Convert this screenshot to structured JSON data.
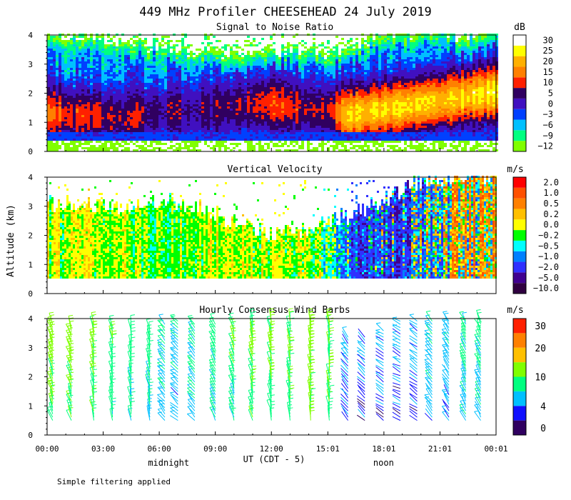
{
  "title": "449 MHz Profiler CHEESEHEAD 24 July 2019",
  "y_axis_label": "Altitude (km)",
  "x_axis": {
    "ticks": [
      "00:00",
      "03:00",
      "06:00",
      "09:00",
      "12:00",
      "15:01",
      "18:01",
      "21:01",
      "00:01"
    ],
    "tick_hours": [
      0,
      3,
      6,
      9,
      12,
      15.02,
      18.02,
      21.02,
      24.02
    ],
    "range": [
      0,
      24.02
    ],
    "label": "UT (CDT - 5)",
    "midnight_label": "midnight",
    "midnight_hour": 6.5,
    "noon_label": "noon",
    "noon_hour": 18.0
  },
  "footer_note": "Simple filtering applied",
  "colors": {
    "snr": [
      "#80ff00",
      "#00ff80",
      "#00c0ff",
      "#0040ff",
      "#4010c0",
      "#300060",
      "#ff2000",
      "#ff8000",
      "#ffb000",
      "#ffff00",
      "#ffffff"
    ],
    "velocity": [
      "#300040",
      "#400090",
      "#3030ff",
      "#0080ff",
      "#00ffff",
      "#00ff00",
      "#ffff00",
      "#ffc000",
      "#ff8000",
      "#ff5000",
      "#ff0000"
    ],
    "wind": [
      "#300060",
      "#1010ff",
      "#00c0ff",
      "#00ff80",
      "#80ff00",
      "#ffc000",
      "#ff8000",
      "#ff2000"
    ]
  },
  "chart_data": [
    {
      "id": "snr",
      "type": "heatmap",
      "title": "Signal to Noise Ratio",
      "xlabel": "UT (CDT - 5)",
      "ylabel": "Altitude (km)",
      "xlim": [
        0,
        24.02
      ],
      "ylim": [
        0,
        4
      ],
      "yticks": [
        "0",
        "1",
        "2",
        "3",
        "4"
      ],
      "colorbar": {
        "unit": "dB",
        "ticks": [
          "30",
          "25",
          "20",
          "15",
          "10",
          "5",
          "0",
          "−3",
          "−6",
          "−9",
          "−12"
        ],
        "tick_values": [
          30,
          25,
          20,
          15,
          10,
          5,
          0,
          -3,
          -6,
          -9,
          -12
        ]
      },
      "profile": {
        "hours": [
          0,
          2,
          4,
          6,
          8,
          10,
          12,
          14,
          15,
          16,
          18,
          20,
          22,
          24
        ],
        "top_km": [
          3.8,
          3.9,
          3.7,
          3.6,
          3.3,
          3.4,
          3.5,
          3.4,
          3.3,
          3.6,
          3.9,
          4.0,
          4.0,
          4.0
        ],
        "peak_db": [
          14,
          11,
          8,
          6,
          5,
          6,
          12,
          8,
          9,
          22,
          24,
          25,
          23,
          26
        ],
        "peak_km": [
          1.3,
          1.2,
          1.1,
          1.3,
          1.4,
          1.5,
          1.6,
          1.4,
          1.4,
          1.2,
          1.4,
          1.6,
          1.8,
          2.0
        ]
      }
    },
    {
      "id": "velocity",
      "type": "heatmap",
      "title": "Vertical Velocity",
      "xlabel": "UT (CDT - 5)",
      "ylabel": "Altitude (km)",
      "xlim": [
        0,
        24.02
      ],
      "ylim": [
        0,
        4
      ],
      "yticks": [
        "0",
        "1",
        "2",
        "3",
        "4"
      ],
      "colorbar": {
        "unit": "m/s",
        "ticks": [
          "2.0",
          "1.0",
          "0.5",
          "0.2",
          "0.0",
          "−0.2",
          "−0.5",
          "−1.0",
          "−2.0",
          "−5.0",
          "−10.0"
        ],
        "tick_values": [
          2.0,
          1.0,
          0.5,
          0.2,
          0.0,
          -0.2,
          -0.5,
          -1.0,
          -2.0,
          -5.0,
          -10.0
        ]
      },
      "profile": {
        "hours": [
          0,
          2,
          4,
          6,
          8,
          10,
          12,
          14,
          15,
          16,
          18,
          20,
          22,
          24
        ],
        "top_km": [
          3.1,
          3.0,
          3.0,
          3.2,
          3.0,
          2.4,
          2.0,
          2.2,
          2.4,
          2.6,
          3.2,
          3.8,
          4.0,
          4.0
        ],
        "mean_ms": [
          0.0,
          0.1,
          0.0,
          -0.1,
          0.0,
          0.1,
          0.0,
          0.0,
          -0.3,
          -1.0,
          -1.2,
          -0.8,
          0.2,
          0.5
        ],
        "spread_ms": [
          0.3,
          0.3,
          0.3,
          0.3,
          0.3,
          0.3,
          0.3,
          0.4,
          0.6,
          1.5,
          2.0,
          2.0,
          1.6,
          1.6
        ]
      }
    },
    {
      "id": "wind",
      "type": "wind-barbs",
      "title": "Hourly Consensus Wind Barbs",
      "xlabel": "UT (CDT - 5)",
      "ylabel": "Altitude (km)",
      "xlim": [
        0,
        24.02
      ],
      "ylim": [
        0,
        4
      ],
      "yticks": [
        "0",
        "1",
        "2",
        "3",
        "4"
      ],
      "colorbar": {
        "unit": "m/s",
        "ticks": [
          "30",
          "20",
          "10",
          "4",
          "0"
        ],
        "tick_values": [
          30,
          20,
          10,
          4,
          0
        ],
        "bounds": [
          0,
          2,
          4,
          7,
          10,
          15,
          20,
          25,
          35
        ]
      },
      "hours": [
        0.3,
        1.3,
        2.5,
        3.5,
        4.5,
        5.5,
        6.3,
        7.0,
        7.9,
        9.0,
        10.0,
        11.0,
        12.0,
        13.0,
        14.1,
        15.1,
        16.1,
        17.0,
        18.0,
        18.9,
        19.8,
        20.6,
        21.5,
        22.4,
        23.2
      ],
      "tops_km": [
        3.8,
        3.7,
        3.9,
        3.7,
        3.7,
        3.6,
        3.8,
        4.0,
        3.9,
        3.8,
        3.9,
        4.0,
        4.0,
        4.0,
        4.0,
        4.0,
        3.4,
        3.4,
        3.6,
        4.0,
        4.0,
        4.0,
        4.0,
        4.0,
        4.0
      ],
      "speed_ms": [
        10,
        10,
        9,
        8,
        7,
        7,
        6,
        5,
        6,
        7,
        8,
        9,
        9,
        9,
        10,
        9,
        4,
        3,
        3,
        3,
        3,
        5,
        5,
        6,
        6
      ],
      "dir_deg": [
        330,
        330,
        340,
        345,
        345,
        340,
        300,
        290,
        300,
        320,
        330,
        340,
        340,
        345,
        350,
        350,
        300,
        290,
        280,
        270,
        280,
        300,
        310,
        320,
        320
      ]
    }
  ]
}
